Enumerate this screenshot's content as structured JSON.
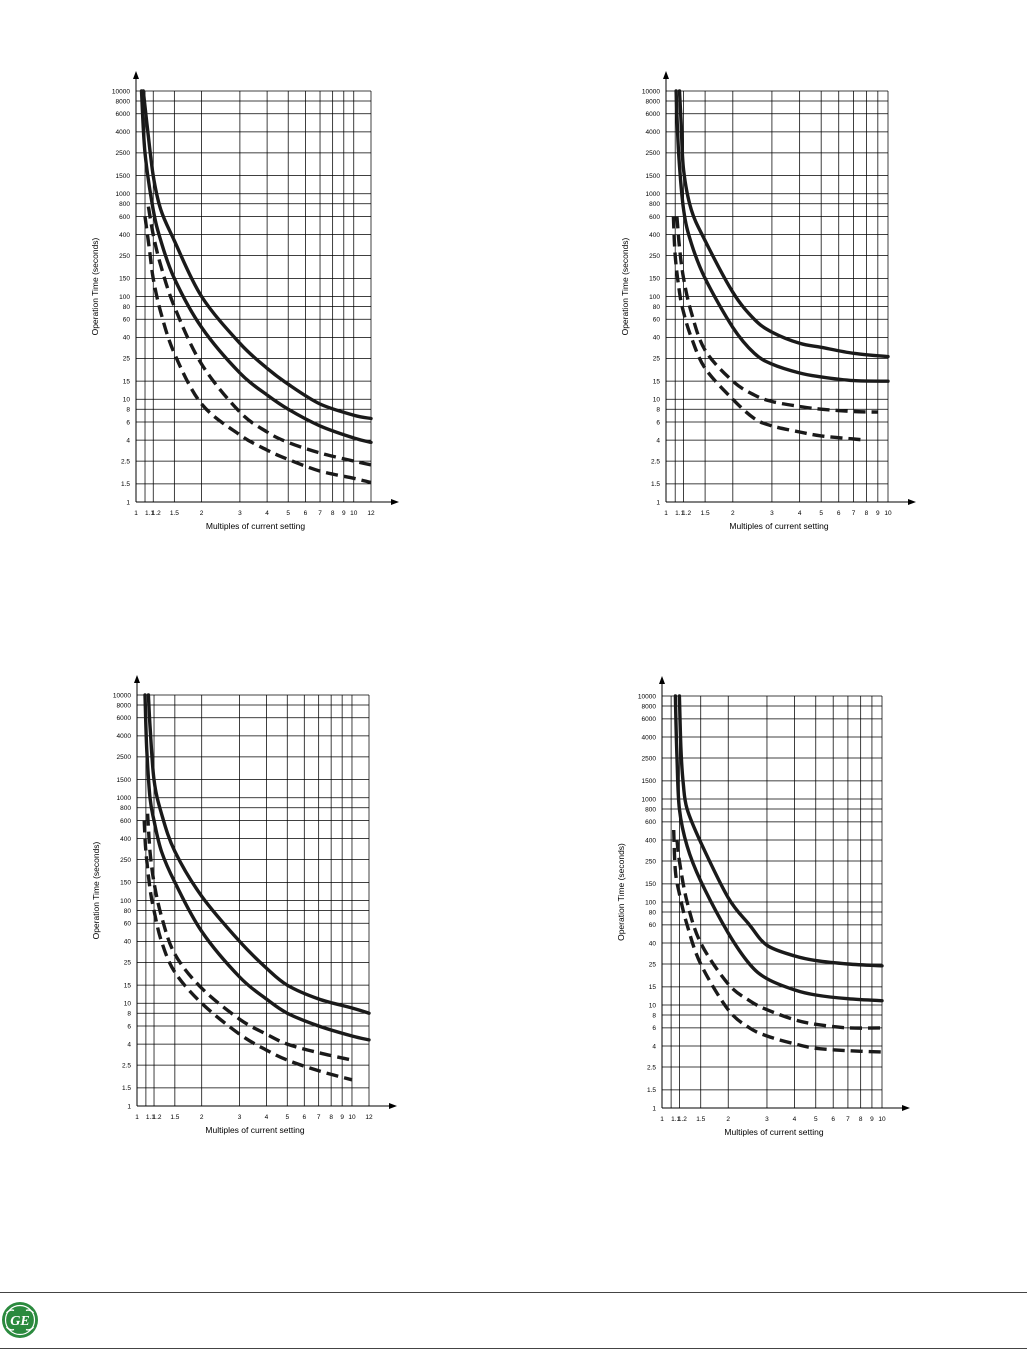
{
  "colors": {
    "curve": "#1a1a1a",
    "grid": "#000000",
    "logo": "#2b8a3e"
  },
  "logo": {
    "icon": "ge-monogram-logo",
    "text": "GE"
  },
  "chart_data": [
    {
      "type": "line",
      "xscale": "log",
      "yscale": "log",
      "xlim": [
        1,
        12
      ],
      "ylim": [
        1,
        10000
      ],
      "xlabel": "Multiples of current setting",
      "ylabel": "Operation Time (seconds)",
      "x_tick_labels": [
        "1",
        "1.1",
        "1.2",
        "1.5",
        "2",
        "3",
        "4",
        "5",
        "6",
        "7",
        "8",
        "9",
        "10",
        "12"
      ],
      "y_tick_labels": [
        "1",
        "1.5",
        "2.5",
        "4",
        "6",
        "8",
        "10",
        "15",
        "25",
        "40",
        "60",
        "80",
        "100",
        "150",
        "250",
        "400",
        "600",
        "800",
        "1000",
        "1500",
        "2500",
        "4000",
        "6000",
        "8000",
        "10000"
      ],
      "series": [
        {
          "style": "solid",
          "x": [
            1.08,
            1.12,
            1.2,
            1.3,
            1.5,
            2,
            3,
            4,
            5,
            7,
            10,
            12
          ],
          "y": [
            10000,
            5000,
            1500,
            700,
            350,
            100,
            35,
            20,
            14,
            9,
            7,
            6.5
          ]
        },
        {
          "style": "solid",
          "x": [
            1.06,
            1.1,
            1.2,
            1.3,
            1.5,
            2,
            3,
            4,
            5,
            7,
            10,
            12
          ],
          "y": [
            10000,
            2500,
            700,
            350,
            150,
            50,
            18,
            11,
            8,
            5.5,
            4.2,
            3.8
          ]
        },
        {
          "style": "dashed",
          "x": [
            1.14,
            1.2,
            1.3,
            1.5,
            2,
            3,
            4,
            5,
            7,
            10,
            12
          ],
          "y": [
            750,
            400,
            200,
            80,
            22,
            7.5,
            4.8,
            3.8,
            3.0,
            2.5,
            2.3
          ]
        },
        {
          "style": "dashed",
          "x": [
            1.1,
            1.15,
            1.2,
            1.3,
            1.5,
            2,
            3,
            4,
            5,
            7,
            10,
            12
          ],
          "y": [
            600,
            300,
            150,
            70,
            28,
            9,
            4.5,
            3.2,
            2.6,
            2.0,
            1.7,
            1.55
          ]
        }
      ]
    },
    {
      "type": "line",
      "xscale": "log",
      "yscale": "log",
      "xlim": [
        1,
        10
      ],
      "ylim": [
        1,
        10000
      ],
      "xlabel": "Multiples of current setting",
      "ylabel": "Operation Time (seconds)",
      "x_tick_labels": [
        "1",
        "1.1",
        "1.2",
        "1.5",
        "2",
        "3",
        "4",
        "5",
        "6",
        "7",
        "8",
        "9",
        "10"
      ],
      "y_tick_labels": [
        "1",
        "1.5",
        "2.5",
        "4",
        "6",
        "8",
        "10",
        "15",
        "25",
        "40",
        "60",
        "80",
        "100",
        "150",
        "250",
        "400",
        "600",
        "800",
        "1000",
        "1500",
        "2500",
        "4000",
        "6000",
        "8000",
        "10000"
      ],
      "series": [
        {
          "style": "solid",
          "x": [
            1.15,
            1.17,
            1.2,
            1.3,
            1.5,
            2,
            2.5,
            3,
            4,
            5,
            7,
            10
          ],
          "y": [
            10000,
            5000,
            1700,
            700,
            350,
            110,
            60,
            45,
            35,
            32,
            28,
            26
          ]
        },
        {
          "style": "solid",
          "x": [
            1.11,
            1.14,
            1.2,
            1.3,
            1.5,
            2,
            2.5,
            3,
            4,
            5,
            7,
            10
          ],
          "y": [
            10000,
            2500,
            700,
            330,
            150,
            50,
            28,
            22,
            18,
            16.5,
            15.2,
            15
          ]
        },
        {
          "style": "dashed",
          "x": [
            1.12,
            1.15,
            1.2,
            1.3,
            1.5,
            2,
            2.5,
            3,
            4,
            5,
            7,
            9
          ],
          "y": [
            600,
            300,
            150,
            70,
            30,
            15,
            11,
            9.5,
            8.5,
            8,
            7.6,
            7.5
          ]
        },
        {
          "style": "dashed",
          "x": [
            1.08,
            1.1,
            1.15,
            1.2,
            1.3,
            1.5,
            2,
            2.5,
            3,
            4,
            5,
            7,
            8
          ],
          "y": [
            600,
            250,
            110,
            70,
            40,
            20,
            10,
            6.5,
            5.5,
            4.8,
            4.4,
            4.1,
            4.0
          ]
        }
      ]
    },
    {
      "type": "line",
      "xscale": "log",
      "yscale": "log",
      "xlim": [
        1,
        12
      ],
      "ylim": [
        1,
        10000
      ],
      "xlabel": "Multiples of current setting",
      "ylabel": "Operation Time (seconds)",
      "x_tick_labels": [
        "1",
        "1.1",
        "1.2",
        "1.5",
        "2",
        "3",
        "4",
        "5",
        "6",
        "7",
        "8",
        "9",
        "10",
        "12"
      ],
      "y_tick_labels": [
        "1",
        "1.5",
        "2.5",
        "4",
        "6",
        "8",
        "10",
        "15",
        "25",
        "40",
        "60",
        "80",
        "100",
        "150",
        "250",
        "400",
        "600",
        "800",
        "1000",
        "1500",
        "2500",
        "4000",
        "6000",
        "8000",
        "10000"
      ],
      "series": [
        {
          "style": "solid",
          "x": [
            1.13,
            1.15,
            1.2,
            1.3,
            1.5,
            2,
            3,
            4,
            5,
            7,
            10,
            12
          ],
          "y": [
            10000,
            5000,
            1500,
            700,
            300,
            110,
            40,
            22,
            15,
            11,
            9,
            8
          ]
        },
        {
          "style": "solid",
          "x": [
            1.09,
            1.11,
            1.15,
            1.2,
            1.3,
            1.5,
            2,
            3,
            4,
            5,
            7,
            10,
            12
          ],
          "y": [
            10000,
            3000,
            1000,
            600,
            300,
            150,
            50,
            18,
            11,
            8,
            6,
            4.8,
            4.4
          ]
        },
        {
          "style": "dashed",
          "x": [
            1.12,
            1.15,
            1.2,
            1.3,
            1.5,
            2,
            3,
            4,
            5,
            7,
            10
          ],
          "y": [
            700,
            300,
            150,
            70,
            30,
            14,
            7,
            5,
            4,
            3.3,
            2.8
          ]
        },
        {
          "style": "dashed",
          "x": [
            1.08,
            1.1,
            1.15,
            1.2,
            1.3,
            1.5,
            2,
            3,
            4,
            5,
            7,
            10
          ],
          "y": [
            600,
            300,
            130,
            80,
            40,
            20,
            10,
            5,
            3.5,
            2.8,
            2.2,
            1.8
          ]
        }
      ]
    },
    {
      "type": "line",
      "xscale": "log",
      "yscale": "log",
      "xlim": [
        1,
        10
      ],
      "ylim": [
        1,
        10000
      ],
      "xlabel": "Multiples of current setting",
      "ylabel": "Operation Time (seconds)",
      "x_tick_labels": [
        "1",
        "1.1",
        "1.2",
        "1.5",
        "2",
        "3",
        "4",
        "5",
        "6",
        "7",
        "8",
        "9",
        "10"
      ],
      "y_tick_labels": [
        "1",
        "1.5",
        "2.5",
        "4",
        "6",
        "8",
        "10",
        "15",
        "25",
        "40",
        "60",
        "80",
        "100",
        "150",
        "250",
        "400",
        "600",
        "800",
        "1000",
        "1500",
        "2500",
        "4000",
        "6000",
        "8000",
        "10000"
      ],
      "series": [
        {
          "style": "solid",
          "x": [
            1.2,
            1.22,
            1.25,
            1.3,
            1.5,
            2,
            2.5,
            3,
            4,
            5,
            7,
            10
          ],
          "y": [
            10000,
            3000,
            1400,
            800,
            380,
            110,
            60,
            38,
            30,
            27,
            25,
            24
          ]
        },
        {
          "style": "solid",
          "x": [
            1.15,
            1.17,
            1.2,
            1.3,
            1.5,
            2,
            2.5,
            3,
            4,
            5,
            7,
            10
          ],
          "y": [
            10000,
            2500,
            800,
            350,
            160,
            50,
            25,
            18,
            14,
            12.5,
            11.5,
            11
          ]
        },
        {
          "style": "dashed",
          "x": [
            1.17,
            1.2,
            1.3,
            1.5,
            2,
            2.5,
            3,
            4,
            5,
            7,
            10
          ],
          "y": [
            400,
            250,
            100,
            40,
            16,
            11,
            9,
            7.2,
            6.5,
            6,
            6
          ]
        },
        {
          "style": "dashed",
          "x": [
            1.13,
            1.15,
            1.2,
            1.3,
            1.5,
            2,
            2.5,
            3,
            4,
            5,
            7,
            10
          ],
          "y": [
            500,
            200,
            120,
            60,
            25,
            9,
            6,
            5,
            4.2,
            3.8,
            3.6,
            3.5
          ]
        }
      ]
    }
  ]
}
